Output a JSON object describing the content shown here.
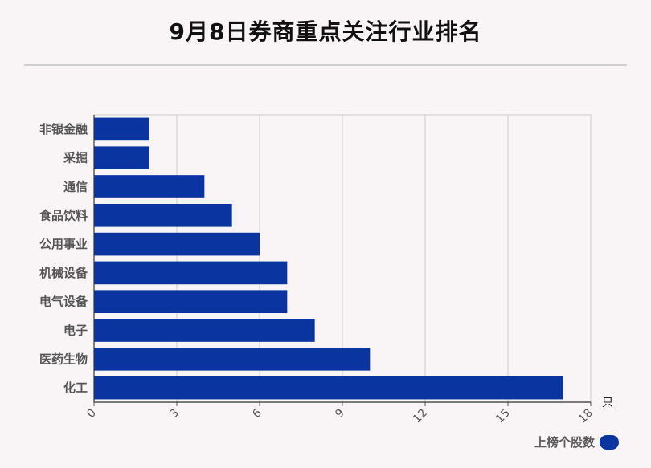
{
  "chart_data": {
    "type": "bar",
    "orientation": "horizontal",
    "title": "9月8日券商重点关注行业排名",
    "categories": [
      "非银金融",
      "采掘",
      "通信",
      "食品饮料",
      "公用事业",
      "机械设备",
      "电气设备",
      "电子",
      "医药生物",
      "化工"
    ],
    "series": [
      {
        "name": "上榜个股数",
        "values": [
          2,
          2,
          4,
          5,
          6,
          7,
          7,
          8,
          10,
          17
        ]
      }
    ],
    "xlim": [
      0,
      18
    ],
    "xticks": [
      "0",
      "3",
      "6",
      "9",
      "12",
      "15",
      "18"
    ],
    "xunit": "只",
    "grid": true,
    "legend": "bottom-right",
    "bar_color": "#0a34a0"
  }
}
